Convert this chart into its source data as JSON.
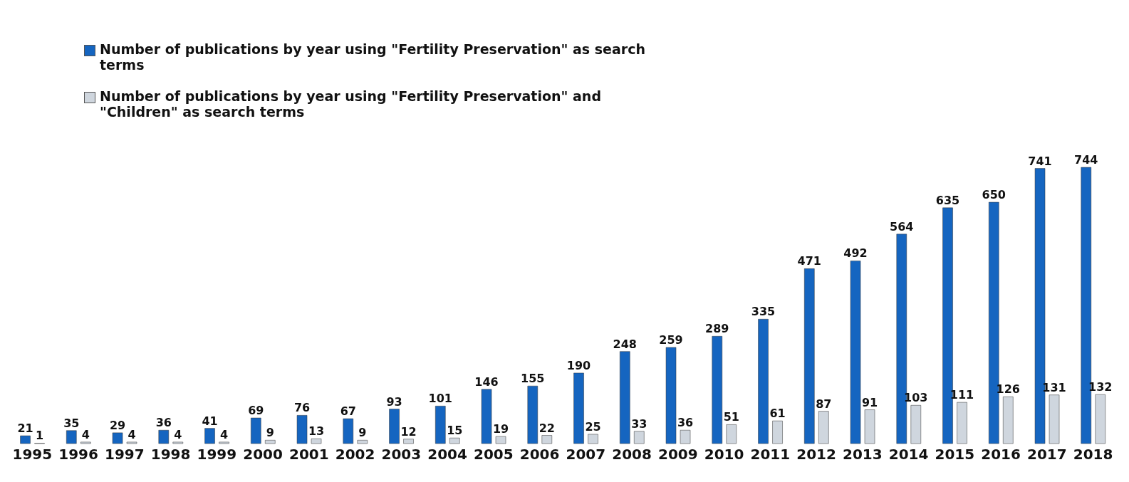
{
  "chart_data": {
    "type": "bar",
    "categories": [
      "1995",
      "1996",
      "1997",
      "1998",
      "1999",
      "2000",
      "2001",
      "2002",
      "2003",
      "2004",
      "2005",
      "2006",
      "2007",
      "2008",
      "2009",
      "2010",
      "2011",
      "2012",
      "2013",
      "2014",
      "2015",
      "2016",
      "2017",
      "2018"
    ],
    "series": [
      {
        "name": "Number of publications by year using \"Fertility Preservation\" as search terms",
        "color": "#1565c0",
        "values": [
          21,
          35,
          29,
          36,
          41,
          69,
          76,
          67,
          93,
          101,
          146,
          155,
          190,
          248,
          259,
          289,
          335,
          471,
          492,
          564,
          635,
          650,
          741,
          744
        ]
      },
      {
        "name": "Number of publications by year using \"Fertility Preservation\" and \"Children\" as search terms",
        "color": "#cfd6de",
        "values": [
          1,
          4,
          4,
          4,
          4,
          9,
          13,
          9,
          12,
          15,
          19,
          22,
          25,
          33,
          36,
          51,
          61,
          87,
          91,
          103,
          111,
          126,
          131,
          132
        ]
      }
    ],
    "data_labels": true,
    "legend": "top left",
    "grid": false
  }
}
